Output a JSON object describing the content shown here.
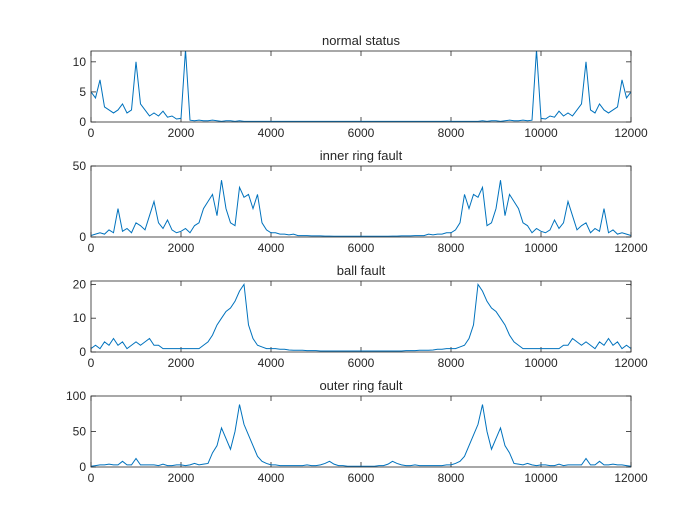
{
  "chart_data": [
    {
      "type": "line",
      "title": "normal status",
      "color": "#0072bd",
      "x": [
        0,
        100,
        200,
        300,
        400,
        500,
        600,
        700,
        800,
        900,
        1000,
        1100,
        1200,
        1300,
        1400,
        1500,
        1600,
        1700,
        1800,
        1900,
        2000,
        2100,
        2200,
        2300,
        2400,
        2500,
        2600,
        2700,
        2800,
        2900,
        3000,
        3100,
        3200,
        3300,
        3400,
        3500,
        3600,
        3700,
        3800,
        3900,
        4000,
        4100,
        4200,
        4300,
        4400,
        4500,
        4600,
        4700,
        4800,
        4900,
        5000,
        5100,
        5200,
        5300,
        5400,
        5500,
        5600,
        5700,
        5800,
        5900,
        6000,
        6100,
        6200,
        6300,
        6400,
        6500,
        6600,
        6700,
        6800,
        6900,
        7000,
        7100,
        7200,
        7300,
        7400,
        7500,
        7600,
        7700,
        7800,
        7900,
        8000,
        8100,
        8200,
        8300,
        8400,
        8500,
        8600,
        8700,
        8800,
        8900,
        9000,
        9100,
        9200,
        9300,
        9400,
        9500,
        9600,
        9700,
        9800,
        9900,
        10000,
        10100,
        10200,
        10300,
        10400,
        10500,
        10600,
        10700,
        10800,
        10900,
        11000,
        11100,
        11200,
        11300,
        11400,
        11500,
        11600,
        11700,
        11800,
        11900,
        12000
      ],
      "values": [
        5,
        4,
        7,
        2.5,
        2,
        1.5,
        2,
        3,
        1.5,
        2,
        10,
        3,
        2,
        1,
        1.5,
        1,
        1.8,
        0.8,
        1,
        0.5,
        0.6,
        12,
        0.3,
        0.2,
        0.3,
        0.2,
        0.2,
        0.3,
        0.2,
        0.1,
        0.2,
        0.2,
        0.1,
        0.2,
        0.1,
        0.1,
        0.1,
        0.1,
        0.1,
        0.1,
        0.1,
        0.1,
        0.1,
        0.1,
        0.1,
        0.1,
        0.1,
        0.1,
        0.1,
        0.1,
        0.1,
        0.1,
        0.1,
        0.1,
        0.1,
        0.1,
        0.1,
        0.1,
        0.1,
        0.1,
        0.1,
        0.1,
        0.1,
        0.1,
        0.1,
        0.1,
        0.1,
        0.1,
        0.1,
        0.1,
        0.1,
        0.1,
        0.1,
        0.1,
        0.1,
        0.1,
        0.1,
        0.1,
        0.1,
        0.1,
        0.1,
        0.1,
        0.1,
        0.1,
        0.1,
        0.1,
        0.1,
        0.2,
        0.1,
        0.2,
        0.2,
        0.1,
        0.2,
        0.3,
        0.2,
        0.2,
        0.3,
        0.2,
        0.3,
        12,
        0.6,
        0.5,
        1,
        0.8,
        1.8,
        1,
        1.5,
        1,
        2,
        3,
        10,
        2,
        1.5,
        3,
        2,
        1.5,
        2,
        2.5,
        7,
        4,
        5
      ],
      "xlim": [
        0,
        12000
      ],
      "ylim": [
        0,
        11.8
      ],
      "xticks": [
        0,
        2000,
        4000,
        6000,
        8000,
        10000,
        12000
      ],
      "yticks": [
        0,
        5,
        10
      ]
    },
    {
      "type": "line",
      "title": "inner ring fault",
      "color": "#0072bd",
      "x": [
        0,
        100,
        200,
        300,
        400,
        500,
        600,
        700,
        800,
        900,
        1000,
        1100,
        1200,
        1300,
        1400,
        1500,
        1600,
        1700,
        1800,
        1900,
        2000,
        2100,
        2200,
        2300,
        2400,
        2500,
        2600,
        2700,
        2800,
        2900,
        3000,
        3100,
        3200,
        3300,
        3400,
        3500,
        3600,
        3700,
        3800,
        3900,
        4000,
        4100,
        4200,
        4300,
        4400,
        4500,
        4600,
        4700,
        4800,
        4900,
        5000,
        5100,
        5200,
        5300,
        5400,
        5500,
        5600,
        5700,
        5800,
        5900,
        6000,
        6100,
        6200,
        6300,
        6400,
        6500,
        6600,
        6700,
        6800,
        6900,
        7000,
        7100,
        7200,
        7300,
        7400,
        7500,
        7600,
        7700,
        7800,
        7900,
        8000,
        8100,
        8200,
        8300,
        8400,
        8500,
        8600,
        8700,
        8800,
        8900,
        9000,
        9100,
        9200,
        9300,
        9400,
        9500,
        9600,
        9700,
        9800,
        9900,
        10000,
        10100,
        10200,
        10300,
        10400,
        10500,
        10600,
        10700,
        10800,
        10900,
        11000,
        11100,
        11200,
        11300,
        11400,
        11500,
        11600,
        11700,
        11800,
        11900,
        12000
      ],
      "values": [
        1,
        2,
        3,
        2,
        5,
        3,
        20,
        4,
        6,
        3,
        10,
        8,
        5,
        15,
        25,
        10,
        6,
        12,
        5,
        3,
        4,
        6,
        3,
        8,
        10,
        20,
        25,
        30,
        15,
        40,
        20,
        10,
        8,
        35,
        28,
        30,
        20,
        30,
        10,
        5,
        3,
        3,
        2,
        2,
        1.5,
        2,
        1,
        1,
        1,
        0.8,
        0.8,
        0.8,
        0.6,
        0.6,
        0.5,
        0.5,
        0.5,
        0.5,
        0.5,
        0.5,
        0.5,
        0.5,
        0.5,
        0.5,
        0.5,
        0.5,
        0.5,
        0.6,
        0.6,
        0.8,
        0.8,
        0.8,
        1,
        1,
        1,
        2,
        1.5,
        2,
        2,
        3,
        3,
        5,
        10,
        30,
        20,
        30,
        28,
        35,
        8,
        10,
        20,
        40,
        15,
        30,
        25,
        20,
        10,
        8,
        3,
        6,
        4,
        3,
        5,
        12,
        6,
        10,
        25,
        15,
        5,
        8,
        10,
        3,
        6,
        4,
        20,
        3,
        5,
        2,
        3,
        2,
        1
      ],
      "xlim": [
        0,
        12000
      ],
      "ylim": [
        0,
        50
      ],
      "xticks": [
        0,
        2000,
        4000,
        6000,
        8000,
        10000,
        12000
      ],
      "yticks": [
        0,
        50
      ]
    },
    {
      "type": "line",
      "title": "ball fault",
      "color": "#0072bd",
      "x": [
        0,
        100,
        200,
        300,
        400,
        500,
        600,
        700,
        800,
        900,
        1000,
        1100,
        1200,
        1300,
        1400,
        1500,
        1600,
        1700,
        1800,
        1900,
        2000,
        2100,
        2200,
        2300,
        2400,
        2500,
        2600,
        2700,
        2800,
        2900,
        3000,
        3100,
        3200,
        3300,
        3400,
        3500,
        3600,
        3700,
        3800,
        3900,
        4000,
        4100,
        4200,
        4300,
        4400,
        4500,
        4600,
        4700,
        4800,
        4900,
        5000,
        5100,
        5200,
        5300,
        5400,
        5500,
        5600,
        5700,
        5800,
        5900,
        6000,
        6100,
        6200,
        6300,
        6400,
        6500,
        6600,
        6700,
        6800,
        6900,
        7000,
        7100,
        7200,
        7300,
        7400,
        7500,
        7600,
        7700,
        7800,
        7900,
        8000,
        8100,
        8200,
        8300,
        8400,
        8500,
        8600,
        8700,
        8800,
        8900,
        9000,
        9100,
        9200,
        9300,
        9400,
        9500,
        9600,
        9700,
        9800,
        9900,
        10000,
        10100,
        10200,
        10300,
        10400,
        10500,
        10600,
        10700,
        10800,
        10900,
        11000,
        11100,
        11200,
        11300,
        11400,
        11500,
        11600,
        11700,
        11800,
        11900,
        12000
      ],
      "values": [
        1,
        2,
        1,
        3,
        2,
        4,
        2,
        3,
        1,
        2,
        3,
        2,
        3,
        4,
        2,
        2,
        1,
        1,
        1,
        1,
        1,
        1,
        1,
        1,
        1,
        2,
        3,
        5,
        8,
        10,
        12,
        13,
        15,
        18,
        20,
        8,
        4,
        2,
        1.5,
        1,
        1,
        1,
        0.8,
        0.8,
        0.6,
        0.5,
        0.5,
        0.5,
        0.4,
        0.4,
        0.4,
        0.3,
        0.3,
        0.3,
        0.3,
        0.3,
        0.3,
        0.3,
        0.3,
        0.3,
        0.3,
        0.3,
        0.3,
        0.3,
        0.3,
        0.3,
        0.3,
        0.3,
        0.3,
        0.3,
        0.4,
        0.4,
        0.4,
        0.5,
        0.5,
        0.5,
        0.6,
        0.8,
        0.8,
        1,
        1,
        1,
        1.5,
        2,
        4,
        8,
        20,
        18,
        15,
        13,
        12,
        10,
        8,
        5,
        3,
        2,
        1,
        1,
        1,
        1,
        1,
        1,
        1,
        1,
        1,
        2,
        2,
        4,
        3,
        2,
        3,
        2,
        1,
        3,
        2,
        4,
        2,
        3,
        1,
        2,
        1
      ],
      "xlim": [
        0,
        12000
      ],
      "ylim": [
        0,
        21
      ],
      "xticks": [
        0,
        2000,
        4000,
        6000,
        8000,
        10000,
        12000
      ],
      "yticks": [
        0,
        10,
        20
      ]
    },
    {
      "type": "line",
      "title": "outer ring fault",
      "color": "#0072bd",
      "x": [
        0,
        100,
        200,
        300,
        400,
        500,
        600,
        700,
        800,
        900,
        1000,
        1100,
        1200,
        1300,
        1400,
        1500,
        1600,
        1700,
        1800,
        1900,
        2000,
        2100,
        2200,
        2300,
        2400,
        2500,
        2600,
        2700,
        2800,
        2900,
        3000,
        3100,
        3200,
        3300,
        3400,
        3500,
        3600,
        3700,
        3800,
        3900,
        4000,
        4100,
        4200,
        4300,
        4400,
        4500,
        4600,
        4700,
        4800,
        4900,
        5000,
        5100,
        5200,
        5300,
        5400,
        5500,
        5600,
        5700,
        5800,
        5900,
        6000,
        6100,
        6200,
        6300,
        6400,
        6500,
        6600,
        6700,
        6800,
        6900,
        7000,
        7100,
        7200,
        7300,
        7400,
        7500,
        7600,
        7700,
        7800,
        7900,
        8000,
        8100,
        8200,
        8300,
        8400,
        8500,
        8600,
        8700,
        8800,
        8900,
        9000,
        9100,
        9200,
        9300,
        9400,
        9500,
        9600,
        9700,
        9800,
        9900,
        10000,
        10100,
        10200,
        10300,
        10400,
        10500,
        10600,
        10700,
        10800,
        10900,
        11000,
        11100,
        11200,
        11300,
        11400,
        11500,
        11600,
        11700,
        11800,
        11900,
        12000
      ],
      "values": [
        1,
        2,
        3,
        3,
        4,
        3,
        3,
        8,
        3,
        3,
        12,
        3,
        3,
        3,
        3,
        2,
        4,
        2,
        2,
        3,
        3,
        2,
        3,
        5,
        3,
        4,
        5,
        20,
        30,
        55,
        40,
        25,
        50,
        88,
        60,
        45,
        30,
        15,
        8,
        5,
        3,
        3,
        2,
        2,
        2,
        2,
        2,
        2,
        3,
        2,
        2,
        3,
        5,
        8,
        4,
        2,
        2,
        1,
        1,
        1,
        1,
        1,
        1,
        1,
        2,
        2,
        4,
        8,
        5,
        3,
        2,
        2,
        3,
        2,
        2,
        2,
        2,
        2,
        2,
        3,
        3,
        5,
        8,
        15,
        30,
        45,
        60,
        88,
        50,
        25,
        40,
        55,
        30,
        20,
        5,
        4,
        3,
        5,
        3,
        2,
        3,
        3,
        2,
        2,
        4,
        2,
        3,
        3,
        3,
        3,
        12,
        3,
        3,
        8,
        3,
        3,
        4,
        3,
        3,
        2,
        1
      ],
      "xlim": [
        0,
        12000
      ],
      "ylim": [
        0,
        100
      ],
      "xticks": [
        0,
        2000,
        4000,
        6000,
        8000,
        10000,
        12000
      ],
      "yticks": [
        0,
        50,
        100
      ]
    }
  ]
}
